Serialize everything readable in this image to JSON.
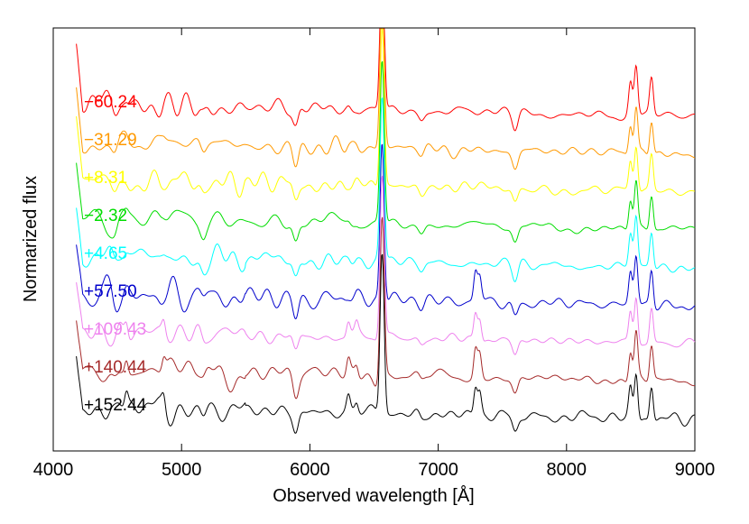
{
  "chart_data": {
    "type": "line",
    "title": "",
    "xlabel": "Observed wavelength [Å]",
    "ylabel": "Normarized flux",
    "xlim": [
      4000,
      9000
    ],
    "xticks": [
      "4000",
      "5000",
      "6000",
      "7000",
      "8000",
      "9000"
    ],
    "yticks": [],
    "grid": false,
    "legend": "inline labels at left",
    "series": [
      {
        "name": "−60.24",
        "color": "#ff0000",
        "offset": 8.0,
        "x_start": 4180
      },
      {
        "name": "−31.29",
        "color": "#ff9900",
        "offset": 7.0,
        "x_start": 4180
      },
      {
        "name": "+8.31",
        "color": "#ffff00",
        "offset": 6.0,
        "x_start": 4180
      },
      {
        "name": "−2.32",
        "color": "#00dd00",
        "offset": 5.0,
        "x_start": 4180
      },
      {
        "name": "+4.65",
        "color": "#00ffff",
        "offset": 4.0,
        "x_start": 4180
      },
      {
        "name": "+57.50",
        "color": "#0000cc",
        "offset": 3.0,
        "x_start": 4180
      },
      {
        "name": "+109.43",
        "color": "#ee82ee",
        "offset": 2.0,
        "x_start": 4180
      },
      {
        "name": "+140.44",
        "color": "#a52a2a",
        "offset": 1.0,
        "x_start": 4180
      },
      {
        "name": "+152.44",
        "color": "#000000",
        "offset": 0.0,
        "x_start": 4180
      }
    ],
    "emission_lines": [
      {
        "center": 6563,
        "strength": 7.0
      },
      {
        "center": 7291,
        "strength": 1.2
      },
      {
        "center": 7324,
        "strength": 1.0
      },
      {
        "center": 8498,
        "strength": 1.3
      },
      {
        "center": 8542,
        "strength": 2.0
      },
      {
        "center": 8662,
        "strength": 1.5
      },
      {
        "center": 4570,
        "strength": 0.6
      },
      {
        "center": 4861,
        "strength": 0.5
      },
      {
        "center": 6300,
        "strength": 0.6
      },
      {
        "center": 6364,
        "strength": 0.4
      }
    ],
    "absorption_lines": [
      {
        "center": 5890,
        "strength": 0.9
      },
      {
        "center": 7600,
        "strength": 0.7
      },
      {
        "center": 6870,
        "strength": 0.3
      },
      {
        "center": 5170,
        "strength": 0.4
      },
      {
        "center": 4481,
        "strength": 0.3
      }
    ]
  }
}
